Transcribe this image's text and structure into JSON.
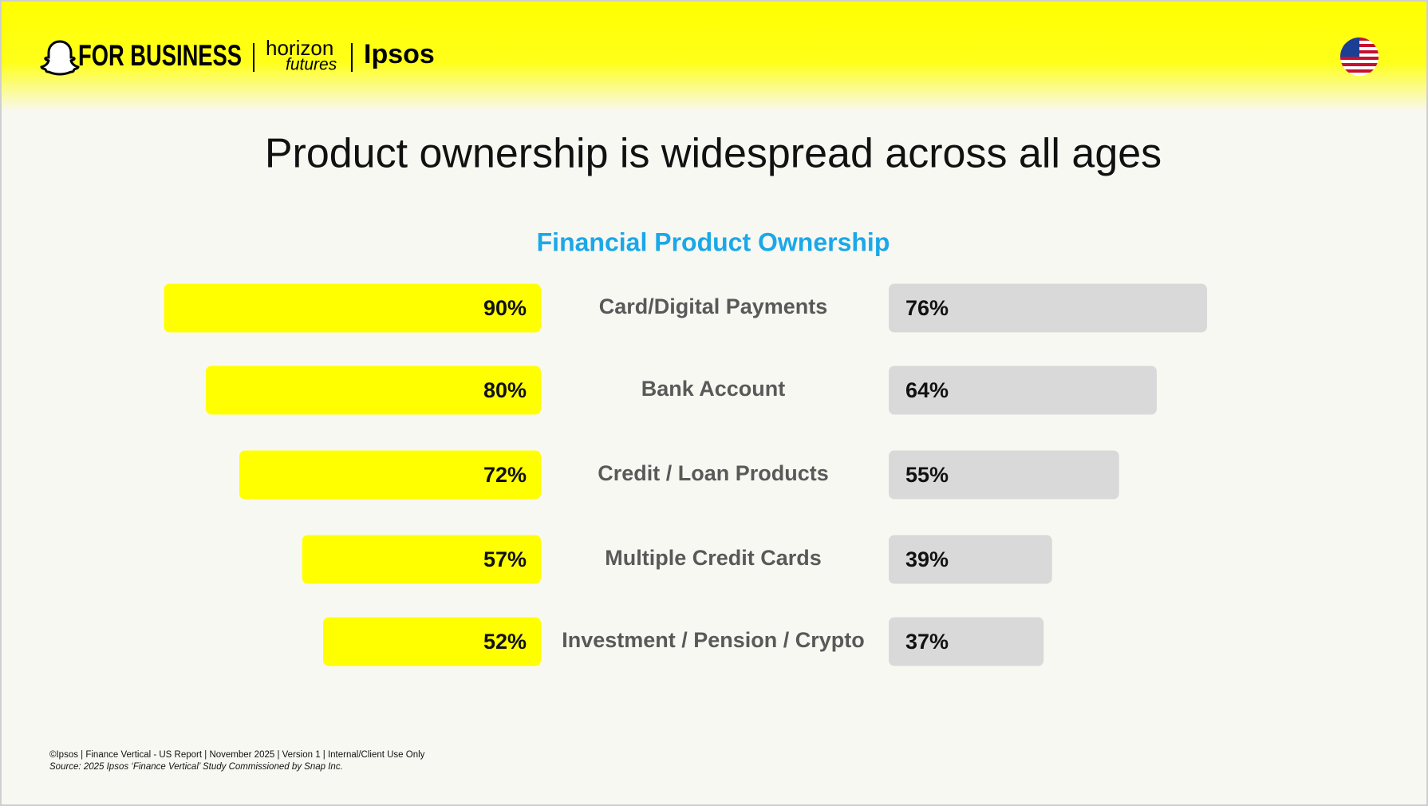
{
  "header": {
    "brand": "FOR BUSINESS",
    "partner_top": "horizon",
    "partner_bottom": "futures",
    "partner2": "Ipsos"
  },
  "chart_data": {
    "type": "butterfly",
    "title": "Product ownership is widespread across all ages",
    "subtitle": "Financial Product Ownership",
    "categories": [
      "Card/Digital Payments",
      "Bank Account",
      "Credit / Loan Products",
      "Multiple Credit Cards",
      "Investment / Pension / Crypto"
    ],
    "series": [
      {
        "color": "#ffff00",
        "values": [
          90,
          80,
          72,
          57,
          52
        ],
        "value_labels": [
          "90%",
          "80%",
          "72%",
          "57%",
          "52%"
        ]
      },
      {
        "color": "#d9d9d9",
        "values": [
          76,
          64,
          55,
          39,
          37
        ],
        "value_labels": [
          "76%",
          "64%",
          "55%",
          "39%",
          "37%"
        ]
      }
    ]
  },
  "footer": {
    "line1": "©Ipsos | Finance Vertical - US Report | November 2025 | Version 1 | Internal/Client Use Only",
    "line2": "Source: 2025 Ipsos ‘Finance Vertical’ Study Commissioned by Snap Inc."
  }
}
